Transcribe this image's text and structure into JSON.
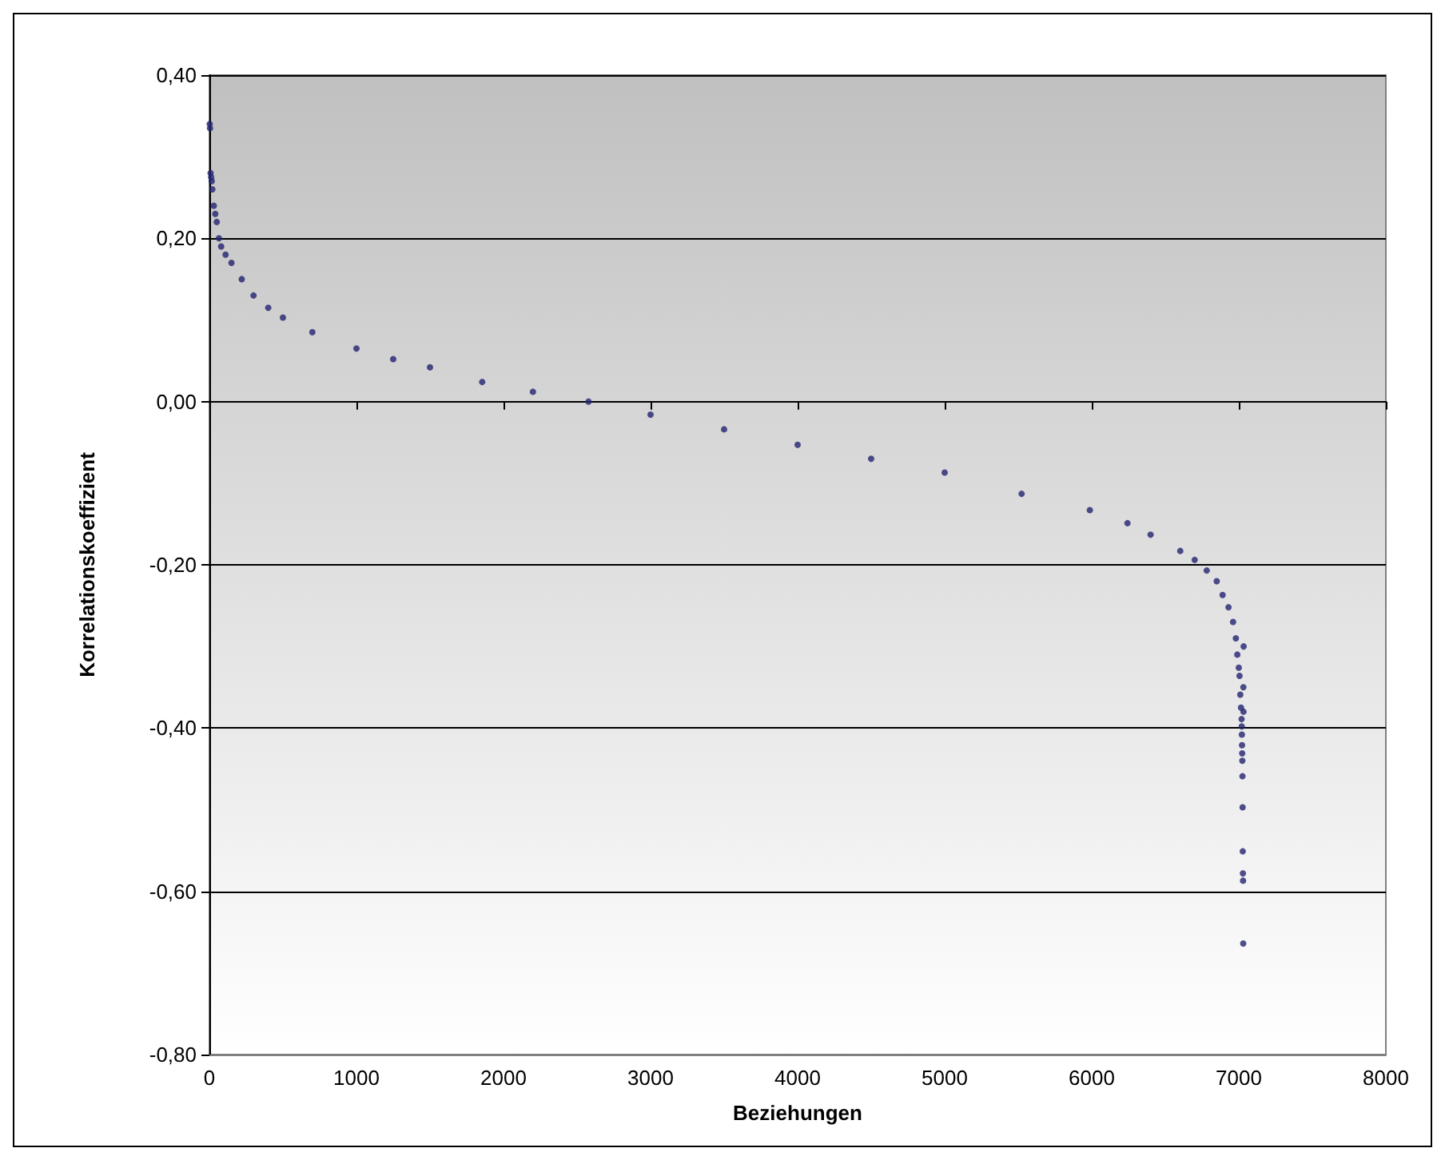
{
  "chart_data": {
    "type": "scatter",
    "xlabel": "Beziehungen",
    "ylabel": "Korrelationskoeffizient",
    "xlim": [
      0,
      8000
    ],
    "xticks": [
      0,
      1000,
      2000,
      3000,
      4000,
      5000,
      6000,
      7000,
      8000
    ],
    "ylim": [
      -0.8,
      0.4
    ],
    "yticks": [
      {
        "value": -0.8,
        "label": "-0,80"
      },
      {
        "value": -0.6,
        "label": "-0,60"
      },
      {
        "value": -0.4,
        "label": "-0,40"
      },
      {
        "value": -0.2,
        "label": "-0,20"
      },
      {
        "value": 0,
        "label": "0,00"
      },
      {
        "value": 0.2,
        "label": "0,20"
      },
      {
        "value": 0.4,
        "label": "0,40"
      }
    ],
    "grid": "y",
    "marker": "circle",
    "series": [
      {
        "color": "#232372",
        "x": [
          2,
          4,
          8,
          12,
          16,
          20,
          30,
          40,
          50,
          65,
          80,
          110,
          150,
          220,
          300,
          400,
          500,
          700,
          1000,
          1250,
          1500,
          1855,
          2200,
          2578,
          3000,
          3500,
          4000,
          4500,
          5000,
          5523,
          5987,
          6243,
          6400,
          6602,
          6700,
          6782,
          6850,
          6890,
          6930,
          6961,
          6980,
          6990,
          7000,
          7005,
          7010,
          7015,
          7019,
          7020,
          7021,
          7022,
          7023,
          7024,
          7025,
          7026,
          7027,
          7028,
          7029,
          7030,
          7031,
          7032,
          7033
        ],
        "values": [
          0.34,
          0.335,
          0.28,
          0.275,
          0.27,
          0.26,
          0.24,
          0.23,
          0.22,
          0.2,
          0.19,
          0.18,
          0.17,
          0.15,
          0.13,
          0.115,
          0.103,
          0.085,
          0.065,
          0.052,
          0.042,
          0.024,
          0.012,
          0.0,
          -0.016,
          -0.034,
          -0.053,
          -0.07,
          -0.087,
          -0.113,
          -0.133,
          -0.149,
          -0.163,
          -0.183,
          -0.194,
          -0.207,
          -0.22,
          -0.237,
          -0.252,
          -0.27,
          -0.29,
          -0.31,
          -0.326,
          -0.336,
          -0.359,
          -0.375,
          -0.389,
          -0.398,
          -0.408,
          -0.421,
          -0.431,
          -0.44,
          -0.459,
          -0.497,
          -0.551,
          -0.578,
          -0.587,
          -0.664,
          -0.35,
          -0.38,
          -0.3
        ]
      }
    ]
  }
}
